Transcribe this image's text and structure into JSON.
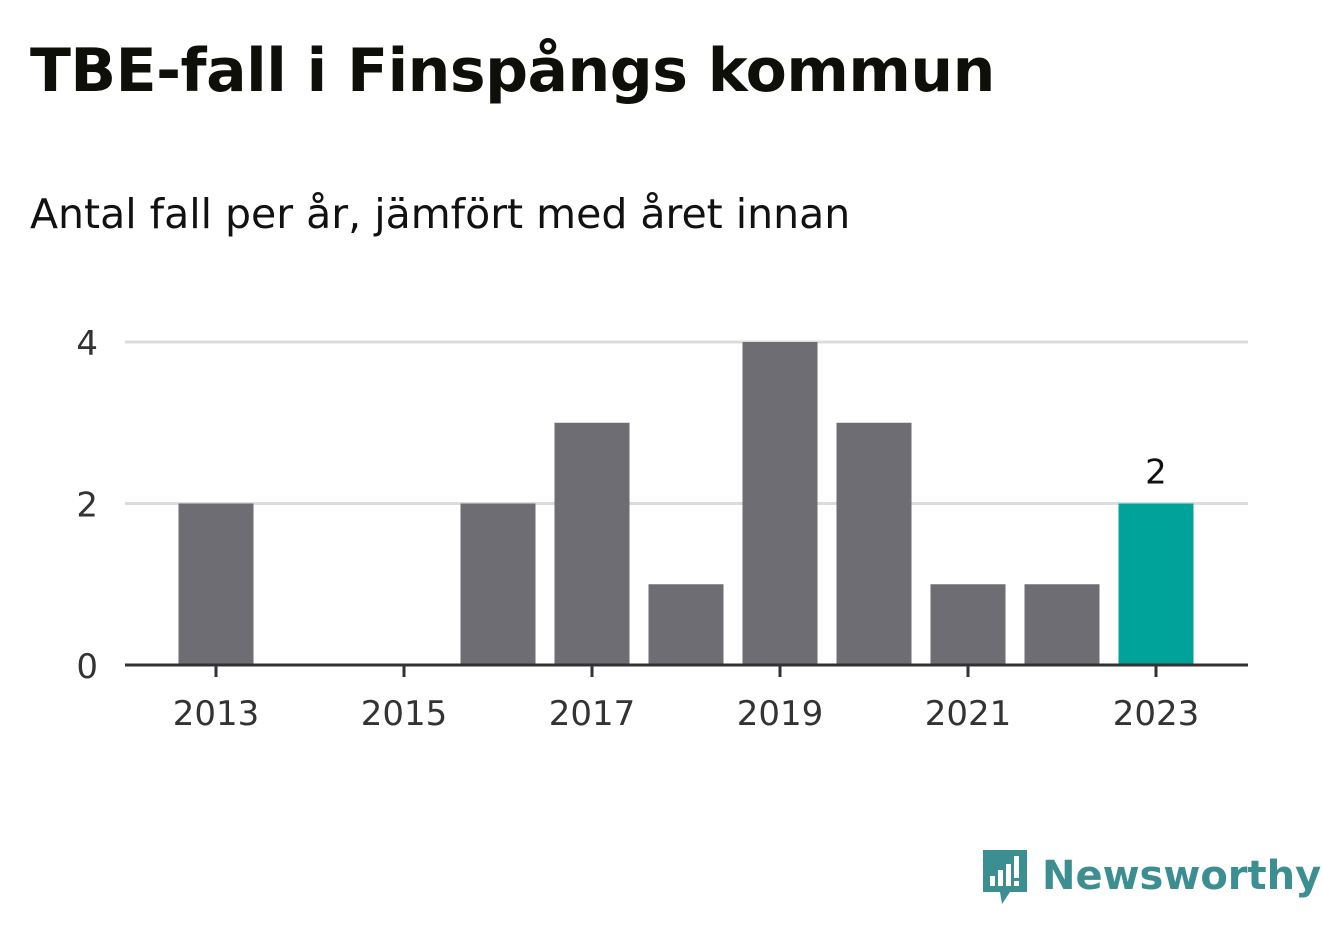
{
  "title": "TBE-fall i Finspångs kommun",
  "subtitle": "Antal fall per år, jämfört med året innan",
  "brand": {
    "name": "Newsworthy",
    "icon": "newsworthy-logo-icon"
  },
  "colors": {
    "bar": "#6e6d73",
    "highlight": "#00a39a",
    "grid": "#dcdcdc",
    "axis": "#333333",
    "text": "#111111",
    "brand": "#3b8f91"
  },
  "chart_data": {
    "type": "bar",
    "categories": [
      "2013",
      "2014",
      "2015",
      "2016",
      "2017",
      "2018",
      "2019",
      "2020",
      "2021",
      "2022",
      "2023"
    ],
    "values": [
      2,
      0,
      0,
      2,
      3,
      1,
      4,
      3,
      1,
      1,
      2
    ],
    "highlight_index": 10,
    "data_labels": [
      {
        "category": "2023",
        "text": "2"
      }
    ],
    "x_tick_labels": [
      "2013",
      "2015",
      "2017",
      "2019",
      "2021",
      "2023"
    ],
    "y_ticks": [
      0,
      2,
      4
    ],
    "ylim": [
      0,
      4
    ],
    "grid": true,
    "legend": "none",
    "title": "TBE-fall i Finspångs kommun",
    "subtitle": "Antal fall per år, jämfört med året innan"
  }
}
